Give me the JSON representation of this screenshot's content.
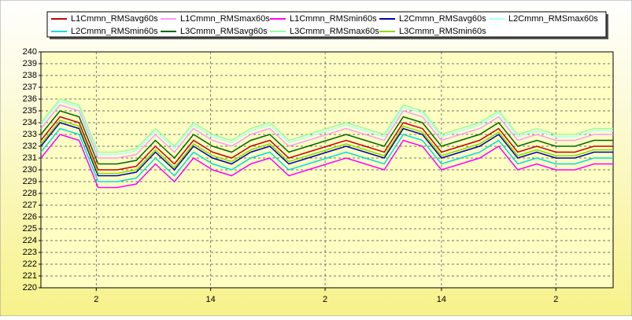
{
  "chart_data": {
    "type": "line",
    "x": [
      0,
      2,
      4,
      6,
      8,
      10,
      12,
      14,
      16,
      18,
      20,
      22,
      24,
      26,
      28,
      30,
      32,
      34,
      36,
      38,
      40,
      42,
      44,
      46,
      48,
      50,
      52,
      54,
      56,
      58,
      60
    ],
    "xlim": [
      0,
      60
    ],
    "xticks": [
      {
        "value": 5.8,
        "label": "2"
      },
      {
        "value": 17.8,
        "label": "14"
      },
      {
        "value": 29.8,
        "label": "2"
      },
      {
        "value": 42,
        "label": "14"
      },
      {
        "value": 54,
        "label": "2"
      }
    ],
    "ylim": [
      220,
      240
    ],
    "yticks": [
      220,
      221,
      222,
      223,
      224,
      225,
      226,
      227,
      228,
      229,
      230,
      231,
      232,
      233,
      234,
      235,
      236,
      237,
      238,
      239,
      240
    ],
    "grid": true,
    "series": [
      {
        "name": "L1Cmmn_RMSavg60s",
        "color": "#cc0000",
        "values": [
          232.5,
          234.5,
          234,
          230,
          230,
          230.3,
          232,
          230.5,
          232.5,
          231.5,
          231,
          232,
          232.5,
          231,
          231.5,
          232,
          232.5,
          232,
          231.5,
          234,
          233.5,
          231.5,
          232,
          232.5,
          233.5,
          231.5,
          232,
          231.5,
          231.5,
          232,
          232
        ]
      },
      {
        "name": "L1Cmmn_RMSmax60s",
        "color": "#ff99ff",
        "values": [
          233.5,
          235.5,
          235,
          231,
          231,
          231.3,
          233,
          231.5,
          233.5,
          232.5,
          232,
          233,
          233.5,
          232,
          232.5,
          233,
          233.5,
          233,
          232.5,
          235,
          234.5,
          232.5,
          233,
          233.5,
          234.5,
          232.5,
          233,
          232.5,
          232.5,
          233,
          233
        ]
      },
      {
        "name": "L1Cmmn_RMSmin60s",
        "color": "#ff00ff",
        "values": [
          231,
          233,
          232.5,
          228.5,
          228.5,
          228.8,
          230.5,
          229,
          231,
          230,
          229.5,
          230.5,
          231,
          229.5,
          230,
          230.5,
          231,
          230.5,
          230,
          232.5,
          232,
          230,
          230.5,
          231,
          232,
          230,
          230.5,
          230,
          230,
          230.5,
          230.5
        ]
      },
      {
        "name": "L2Cmmn_RMSavg60s",
        "color": "#0000aa",
        "values": [
          232,
          234,
          233.5,
          229.5,
          229.5,
          229.8,
          231.5,
          230,
          232,
          231,
          230.5,
          231.5,
          232,
          230.5,
          231,
          231.5,
          232,
          231.5,
          231,
          233.5,
          233,
          231,
          231.5,
          232,
          233,
          231,
          231.5,
          231,
          231,
          231.5,
          231.5
        ]
      },
      {
        "name": "L2Cmmn_RMSmax60s",
        "color": "#aaffff",
        "values": [
          233.8,
          235.8,
          235.3,
          231.3,
          231.3,
          231.6,
          233.3,
          231.8,
          233.8,
          232.8,
          232.3,
          233.3,
          233.8,
          232.3,
          232.8,
          233.3,
          233.8,
          233.3,
          232.8,
          235.3,
          234.8,
          232.8,
          233.3,
          233.8,
          234.8,
          232.8,
          233.3,
          232.8,
          232.8,
          233.3,
          233.3
        ]
      },
      {
        "name": "L2Cmmn_RMSmin60s",
        "color": "#00dddd",
        "values": [
          231.5,
          233.5,
          233,
          229,
          229,
          229.3,
          231,
          229.5,
          231.5,
          230.5,
          230,
          231,
          231.5,
          230,
          230.5,
          231,
          231.5,
          231,
          230.5,
          233,
          232.5,
          230.5,
          231,
          231.5,
          232.5,
          230.5,
          231,
          230.5,
          230.5,
          231,
          231
        ]
      },
      {
        "name": "L3Cmmn_RMSavg60s",
        "color": "#006600",
        "values": [
          233,
          235,
          234.5,
          230.5,
          230.5,
          230.8,
          232.5,
          231,
          233,
          232,
          231.5,
          232.5,
          233,
          231.5,
          232,
          232.5,
          233,
          232.5,
          232,
          234.5,
          234,
          232,
          232.5,
          233,
          234,
          232,
          232.5,
          232,
          232,
          232.5,
          232.5
        ]
      },
      {
        "name": "L3Cmmn_RMSmax60s",
        "color": "#99ff99",
        "values": [
          234,
          236,
          235.5,
          231.5,
          231.5,
          231.8,
          233.5,
          232,
          234,
          233,
          232.5,
          233.5,
          234,
          232.5,
          233,
          233.5,
          234,
          233.5,
          233,
          235.5,
          235,
          233,
          233.5,
          234,
          235,
          233,
          233.5,
          233,
          233,
          233.5,
          233.5
        ]
      },
      {
        "name": "L3Cmmn_RMSmin60s",
        "color": "#88dd00",
        "values": [
          232.2,
          234.2,
          233.7,
          229.7,
          229.7,
          230,
          231.7,
          230.2,
          232.2,
          231.2,
          230.7,
          231.7,
          232.2,
          230.7,
          231.2,
          231.7,
          232.2,
          231.7,
          231.2,
          233.7,
          233.2,
          231.2,
          231.7,
          232.2,
          233.2,
          231.2,
          231.7,
          231.2,
          231.2,
          231.7,
          231.7
        ]
      }
    ]
  }
}
